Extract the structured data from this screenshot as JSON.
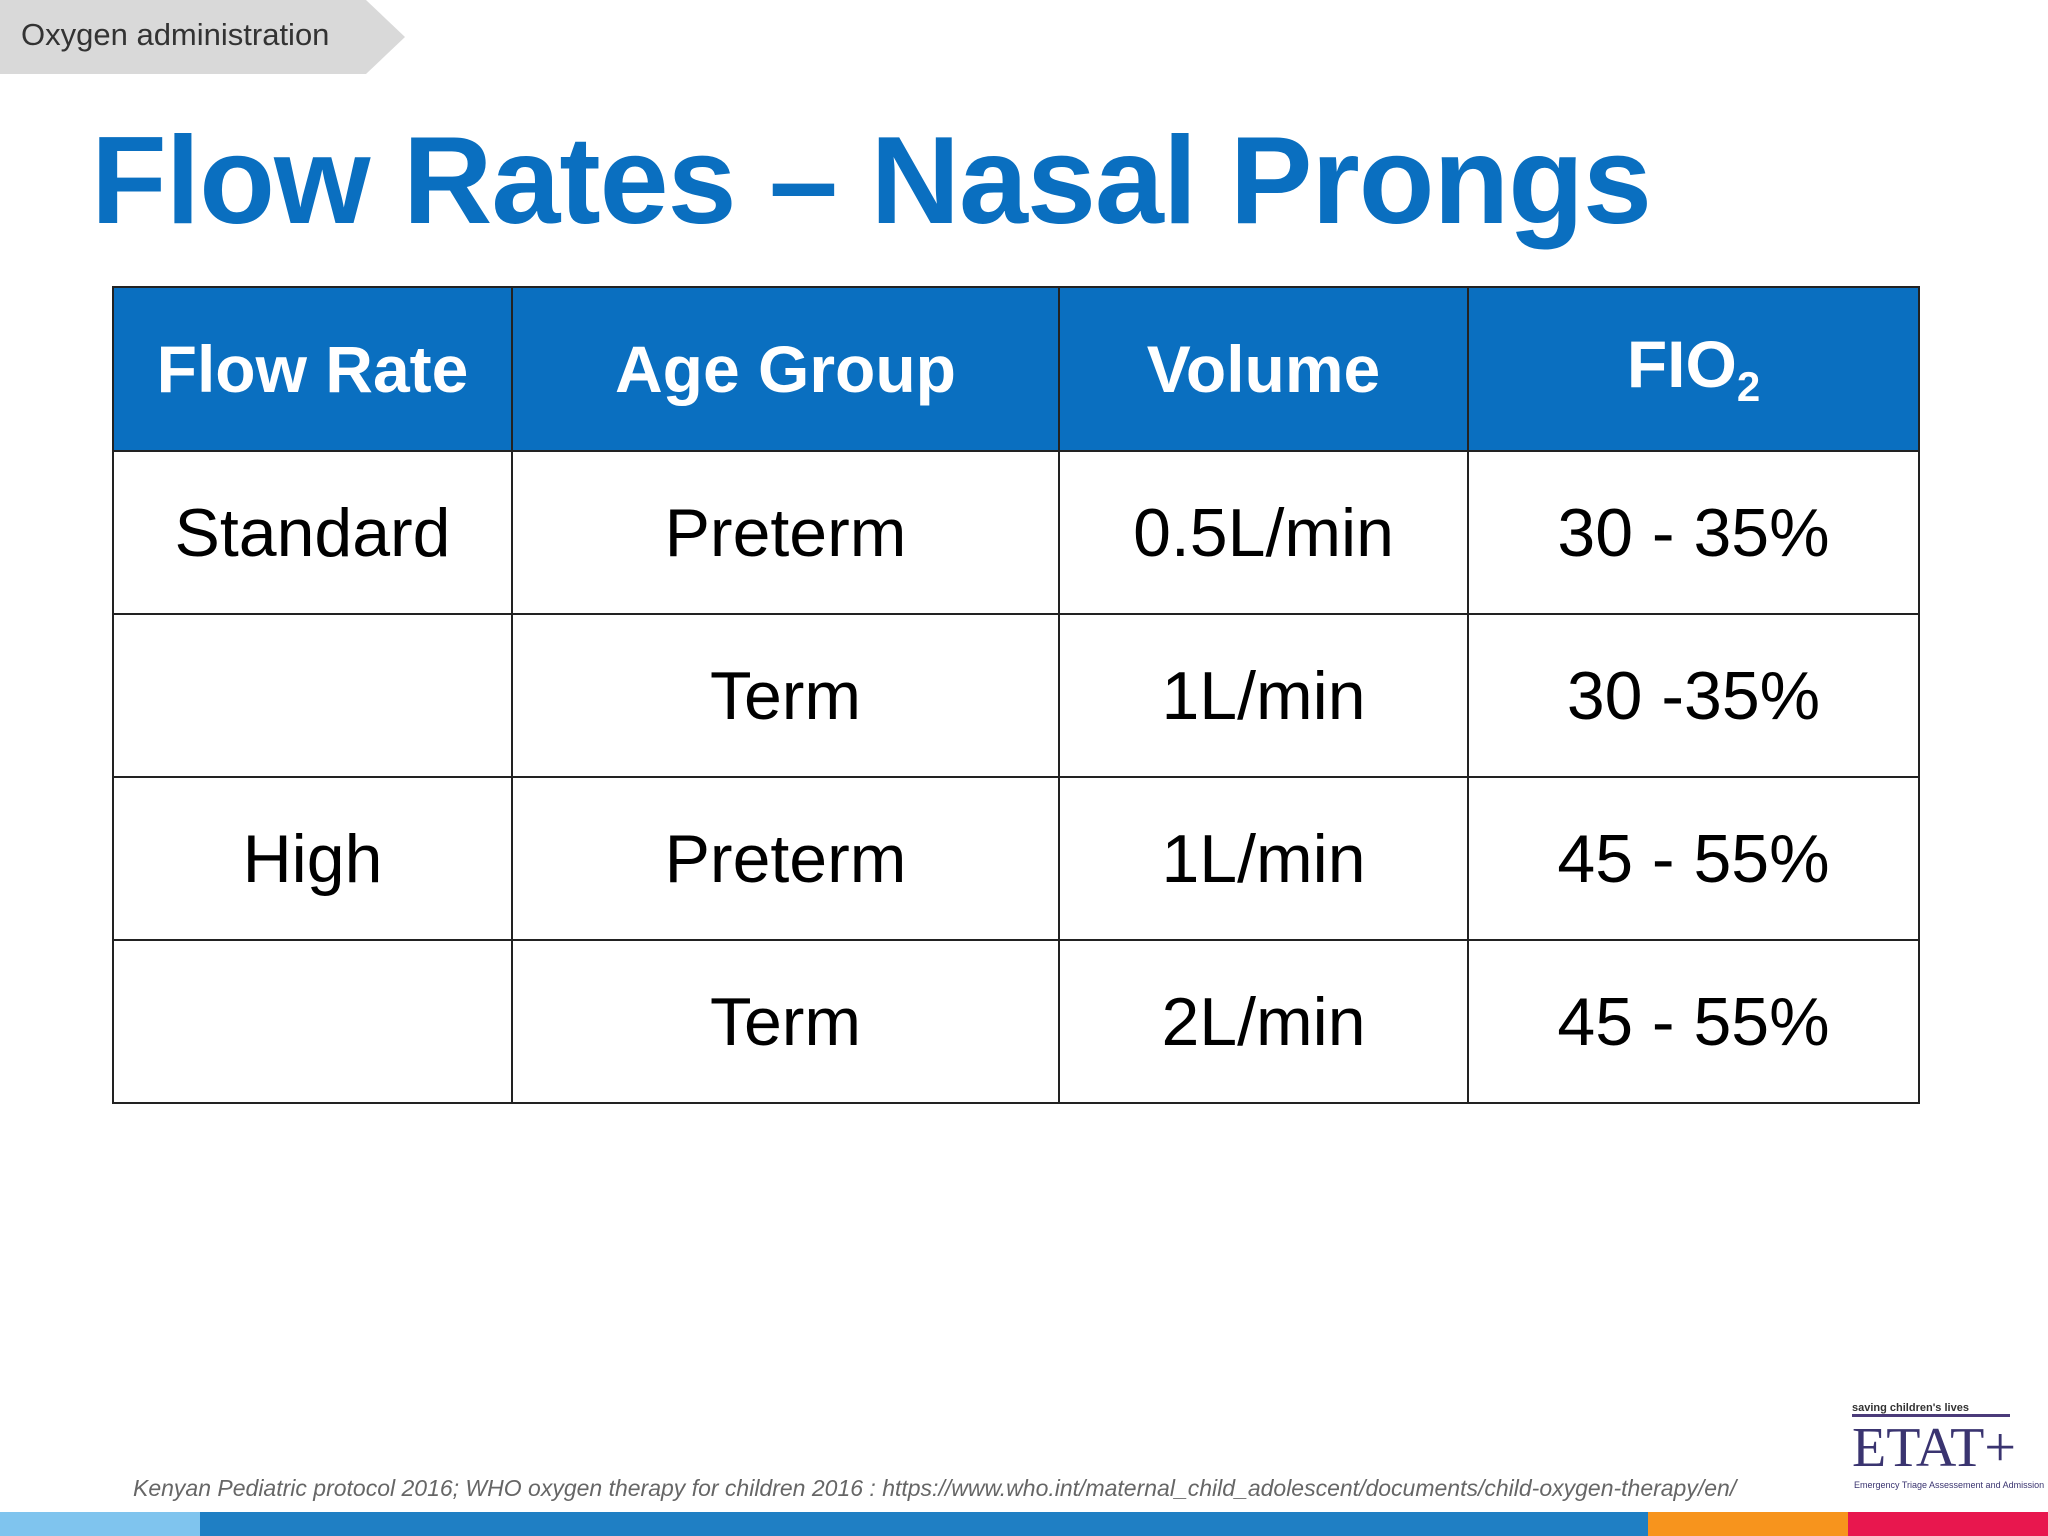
{
  "breadcrumb": "Oxygen administration",
  "title": "Flow Rates – Nasal Prongs",
  "table": {
    "headers": [
      "Flow Rate",
      "Age Group",
      "Volume",
      {
        "text": "FIO",
        "subscript": "2"
      }
    ],
    "rows": [
      [
        "Standard",
        "Preterm",
        "0.5L/min",
        "30 - 35%"
      ],
      [
        null,
        "Term",
        "1L/min",
        "30 -35%"
      ],
      [
        "High",
        "Preterm",
        "1L/min",
        "45 - 55%"
      ],
      [
        null,
        "Term",
        "2L/min",
        "45 - 55%"
      ]
    ]
  },
  "footnote": "Kenyan Pediatric protocol 2016; WHO oxygen therapy for children 2016 : https://www.who.int/maternal_child_adolescent/documents/child-oxygen-therapy/en/",
  "logo": {
    "tagline": "saving children's lives",
    "name": "ETAT+",
    "subtitle": "Emergency Triage Assessement and Admission"
  }
}
